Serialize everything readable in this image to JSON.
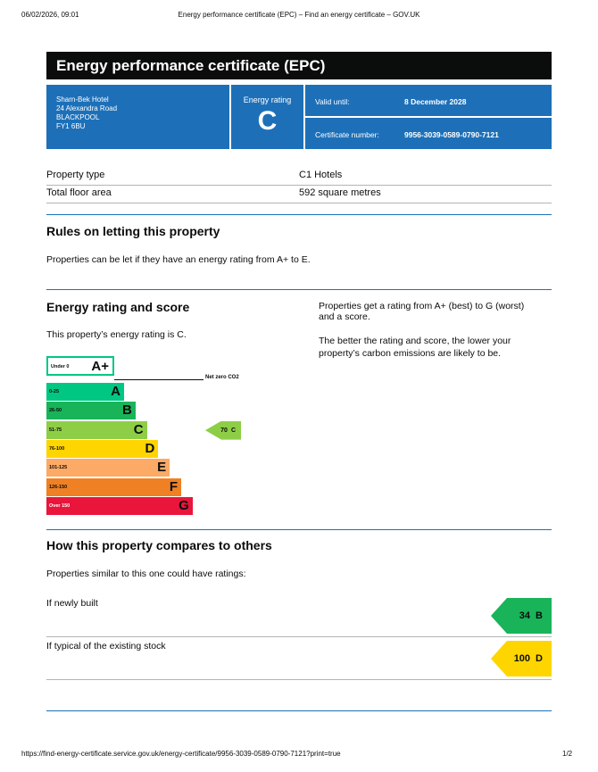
{
  "browser_header": {
    "datetime": "06/02/2026, 09:01",
    "page_title": "Energy performance certificate (EPC) – Find an energy certificate – GOV.UK"
  },
  "title": "Energy performance certificate (EPC)",
  "address": [
    "Sharn-Bek Hotel",
    "24 Alexandra Road",
    "BLACKPOOL",
    "FY1 6BU"
  ],
  "energy_rating": {
    "label": "Energy rating",
    "value": "C"
  },
  "valid_until": {
    "label": "Valid until:",
    "value": "8 December 2028"
  },
  "certificate_number": {
    "label": "Certificate number:",
    "value": "9956-3039-0589-0790-7121"
  },
  "property": [
    [
      "Property type",
      "C1 Hotels"
    ],
    [
      "Total floor area",
      "592 square metres"
    ]
  ],
  "rules": {
    "heading": "Rules on letting this property",
    "text": "Properties can be let if they have an energy rating from A+ to E."
  },
  "rating_section": {
    "heading": "Energy rating and score",
    "text": "This property’s energy rating is C.",
    "side_text": [
      "Properties get a rating from A+ (best) to G (worst)",
      "and a score.",
      "The better the rating and score, the lower your",
      "property’s carbon emissions are likely to be."
    ],
    "net_zero_label": "Net zero CO2",
    "bands": [
      {
        "range": "Under 0",
        "letter": "A+",
        "color": "#ffffff"
      },
      {
        "range": "0-25",
        "letter": "A",
        "color": "#00c781"
      },
      {
        "range": "26-50",
        "letter": "B",
        "color": "#19b459"
      },
      {
        "range": "51-75",
        "letter": "C",
        "color": "#8dce46"
      },
      {
        "range": "76-100",
        "letter": "D",
        "color": "#ffd500"
      },
      {
        "range": "101-125",
        "letter": "E",
        "color": "#fcaa65"
      },
      {
        "range": "126-150",
        "letter": "F",
        "color": "#ef8023"
      },
      {
        "range": "Over 150",
        "letter": "G",
        "color": "#e9153b"
      }
    ],
    "current": {
      "score": 70,
      "letter": "C"
    }
  },
  "compare": {
    "heading": "How this property compares to others",
    "text": "Properties similar to this one could have ratings:",
    "items": [
      {
        "label": "If newly built",
        "score": 34,
        "letter": "B"
      },
      {
        "label": "If typical of the existing stock",
        "score": 100,
        "letter": "D"
      }
    ]
  },
  "footer": {
    "url": "https://find-energy-certificate.service.gov.uk/energy-certificate/9956-3039-0589-0790-7121?print=true",
    "page": "1/2"
  }
}
